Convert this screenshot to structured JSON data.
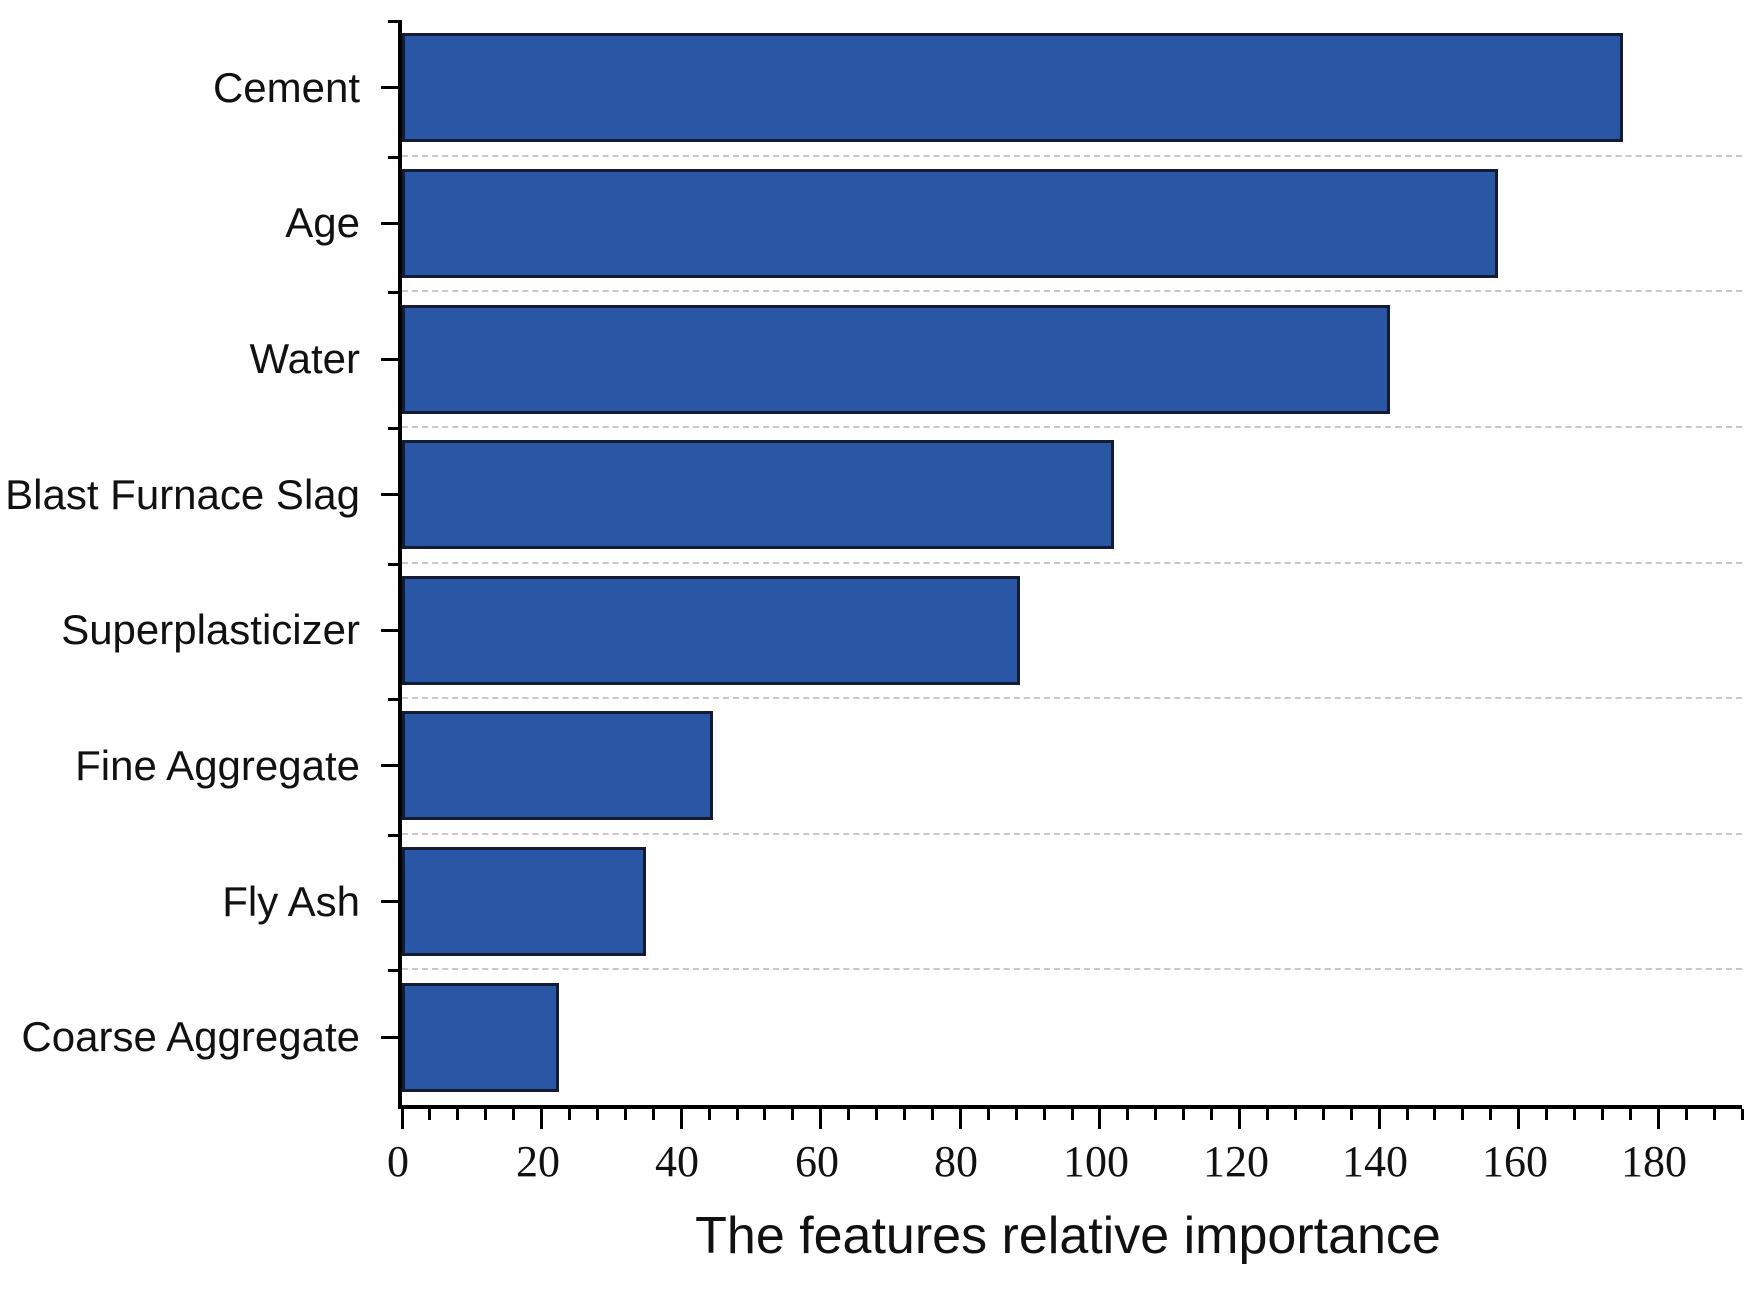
{
  "chart_data": {
    "type": "bar",
    "orientation": "horizontal",
    "title": "",
    "xlabel": "The features relative importance",
    "ylabel": "",
    "categories": [
      "Cement",
      "Age",
      "Water",
      "Blast Furnace Slag",
      "Superplasticizer",
      "Fine Aggregate",
      "Fly Ash",
      "Coarse Aggregate"
    ],
    "values": [
      175,
      157,
      141.5,
      102,
      88.5,
      44.5,
      35,
      22.5
    ],
    "xlim": [
      0,
      192
    ],
    "x_major_ticks": [
      0,
      20,
      40,
      60,
      80,
      100,
      120,
      140,
      160,
      180
    ],
    "x_minor_step": 4,
    "legend": "none",
    "grid": "dashed horizontal lines between category rows",
    "bar_color": "#2a56a6",
    "bar_edge_color": "#131c33",
    "gridline_color": "#c8c8c8",
    "axis_color": "#000000"
  }
}
